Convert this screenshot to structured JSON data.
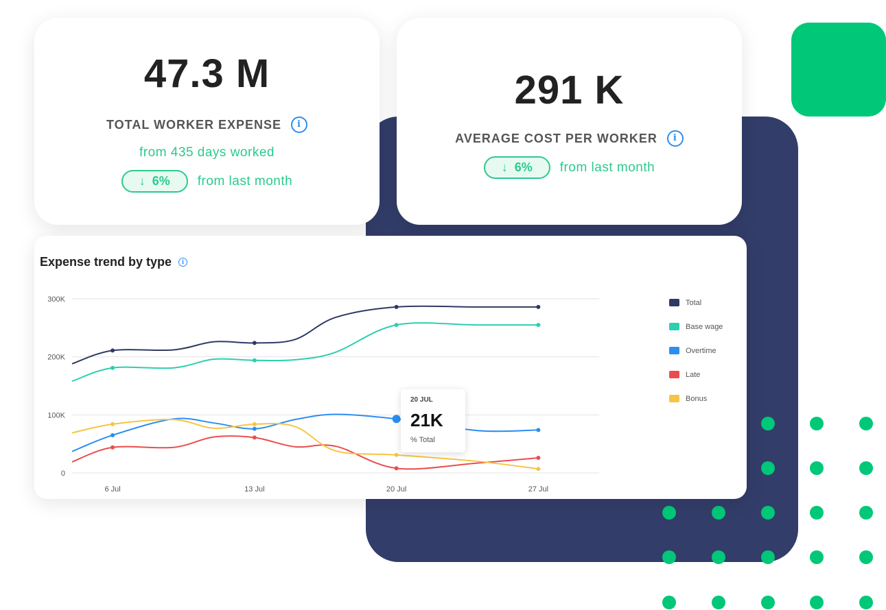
{
  "kpi1": {
    "value": "47.3 M",
    "label": "TOTAL WORKER EXPENSE",
    "subtext": "from 435 days worked",
    "change": "6%",
    "change_suffix": "from last month"
  },
  "kpi2": {
    "value": "291 K",
    "label": "AVERAGE COST PER WORKER",
    "change": "6%",
    "change_suffix": "from last month"
  },
  "colors": {
    "navy": "#323d69",
    "green": "#00c878",
    "accent": "#2cc98d"
  },
  "chart": {
    "title": "Expense trend by type"
  },
  "tooltip": {
    "date": "20 JUL",
    "value": "21K",
    "series": "% Total"
  },
  "chart_data": {
    "type": "line",
    "title": "Expense trend by type",
    "x": [
      4,
      6,
      9,
      11,
      13,
      15,
      17,
      20,
      24,
      27
    ],
    "x_ticks": [
      {
        "v": 6,
        "label": "6 Jul"
      },
      {
        "v": 13,
        "label": "13 Jul"
      },
      {
        "v": 20,
        "label": "20 Jul"
      },
      {
        "v": 27,
        "label": "27 Jul"
      }
    ],
    "xlim": [
      4,
      30
    ],
    "ylim": [
      0,
      300000
    ],
    "y_ticks": [
      {
        "v": 0,
        "label": "0"
      },
      {
        "v": 100000,
        "label": "100K"
      },
      {
        "v": 200000,
        "label": "200K"
      },
      {
        "v": 300000,
        "label": "300K"
      }
    ],
    "grid": true,
    "legend_position": "right",
    "series": [
      {
        "name": "Total",
        "color": "#2e3a63",
        "values": [
          188000,
          211000,
          212000,
          226000,
          224000,
          230000,
          268000,
          286000,
          286000,
          286000
        ]
      },
      {
        "name": "Base wage",
        "color": "#2ccfb0",
        "values": [
          158000,
          181000,
          181000,
          196000,
          194000,
          195000,
          208000,
          255000,
          255000,
          255000
        ]
      },
      {
        "name": "Overtime",
        "color": "#2b8ef1",
        "values": [
          37000,
          65000,
          93000,
          86000,
          76000,
          92000,
          101000,
          93000,
          73000,
          74000
        ]
      },
      {
        "name": "Late",
        "color": "#ea4d4d",
        "values": [
          19000,
          44000,
          44000,
          62000,
          61000,
          45000,
          46000,
          8000,
          17000,
          26000
        ]
      },
      {
        "name": "Bonus",
        "color": "#f7c443",
        "values": [
          69000,
          84000,
          92000,
          77000,
          84000,
          80000,
          38000,
          31000,
          20000,
          7000
        ]
      }
    ],
    "markers": [
      6,
      13,
      20,
      27
    ],
    "highlight": {
      "series": "Overtime",
      "x": 20
    }
  }
}
